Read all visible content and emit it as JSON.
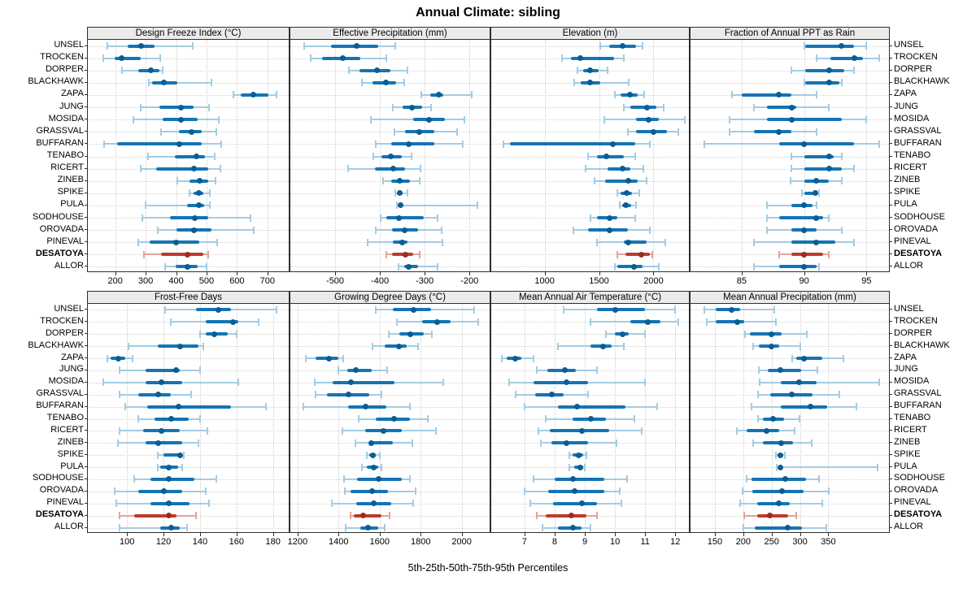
{
  "title": "Annual Climate: sibling",
  "caption": "5th-25th-50th-75th-95th Percentiles",
  "highlight_site": "DESATOYA",
  "colors": {
    "series_blue": "#1474b4",
    "series_blue_light": "#a5cbe2",
    "series_blue_dot": "#0b5d93",
    "highlight_red": "#bf3a2b",
    "highlight_red_light": "#e2a49c",
    "highlight_red_dot": "#9e2b1f",
    "grid": "#cfcfcf",
    "strip_bg": "#ebebeb",
    "border": "#2f2f2f"
  },
  "sites": [
    "UNSEL",
    "TROCKEN",
    "DORPER",
    "BLACKHAWK",
    "ZAPA",
    "JUNG",
    "MOSIDA",
    "GRASSVAL",
    "BUFFARAN",
    "TENABO",
    "RICERT",
    "ZINEB",
    "SPIKE",
    "PULA",
    "SODHOUSE",
    "OROVADA",
    "PINEVAL",
    "DESATOYA",
    "ALLOR"
  ],
  "percentile_levels": [
    5,
    25,
    50,
    75,
    95
  ],
  "chart_data": [
    {
      "type": "scatter",
      "style": "percentile-dot-whisker",
      "title": "Design Freeze Index (°C)",
      "xlim": [
        110,
        770
      ],
      "ticks": [
        200,
        300,
        400,
        500,
        600,
        700
      ],
      "values": [
        [
          175,
          240,
          285,
          330,
          455
        ],
        [
          160,
          198,
          222,
          285,
          348
        ],
        [
          222,
          276,
          318,
          345,
          355
        ],
        [
          310,
          320,
          360,
          405,
          515
        ],
        [
          588,
          612,
          655,
          703,
          730
        ],
        [
          285,
          345,
          415,
          458,
          508
        ],
        [
          260,
          355,
          415,
          470,
          540
        ],
        [
          350,
          410,
          450,
          485,
          532
        ],
        [
          163,
          207,
          410,
          485,
          548
        ],
        [
          308,
          395,
          467,
          496,
          528
        ],
        [
          284,
          335,
          460,
          505,
          545
        ],
        [
          405,
          445,
          478,
          506,
          530
        ],
        [
          445,
          458,
          474,
          489,
          510
        ],
        [
          300,
          435,
          475,
          491,
          510
        ],
        [
          288,
          379,
          461,
          505,
          645
        ],
        [
          340,
          400,
          460,
          516,
          655
        ],
        [
          276,
          314,
          399,
          476,
          535
        ],
        [
          295,
          350,
          438,
          490,
          505
        ],
        [
          364,
          399,
          438,
          470,
          499
        ]
      ]
    },
    {
      "type": "scatter",
      "style": "percentile-dot-whisker",
      "title": "Effective Precipitation (mm)",
      "xlim": [
        -600,
        -155
      ],
      "ticks": [
        -500,
        -400,
        -300,
        -200
      ],
      "values": [
        [
          -570,
          -509,
          -452,
          -404,
          -365
        ],
        [
          -555,
          -530,
          -482,
          -443,
          -385
        ],
        [
          -470,
          -445,
          -407,
          -377,
          -338
        ],
        [
          -440,
          -416,
          -387,
          -363,
          -345
        ],
        [
          -308,
          -287,
          -269,
          -259,
          -195
        ],
        [
          -372,
          -350,
          -329,
          -305,
          -285
        ],
        [
          -420,
          -325,
          -290,
          -254,
          -212
        ],
        [
          -367,
          -344,
          -313,
          -278,
          -227
        ],
        [
          -410,
          -375,
          -335,
          -279,
          -215
        ],
        [
          -415,
          -397,
          -375,
          -351,
          -329
        ],
        [
          -471,
          -411,
          -371,
          -344,
          -309
        ],
        [
          -393,
          -375,
          -355,
          -333,
          -311
        ],
        [
          -365,
          -362,
          -355,
          -350,
          -339
        ],
        [
          -362,
          -358,
          -354,
          -349,
          -182
        ],
        [
          -398,
          -385,
          -357,
          -302,
          -271
        ],
        [
          -409,
          -373,
          -345,
          -315,
          -263
        ],
        [
          -428,
          -372,
          -351,
          -338,
          -261
        ],
        [
          -385,
          -373,
          -343,
          -325,
          -311
        ],
        [
          -359,
          -345,
          -335,
          -315,
          -271
        ]
      ]
    },
    {
      "type": "scatter",
      "style": "percentile-dot-whisker",
      "title": "Elevation (m)",
      "xlim": [
        510,
        2325
      ],
      "ticks": [
        1000,
        1500,
        2000
      ],
      "values": [
        [
          1510,
          1595,
          1715,
          1840,
          1900
        ],
        [
          1160,
          1240,
          1330,
          1640,
          1730
        ],
        [
          1300,
          1355,
          1415,
          1495,
          1580
        ],
        [
          1270,
          1330,
          1415,
          1512,
          1772
        ],
        [
          1645,
          1700,
          1780,
          1855,
          1915
        ],
        [
          1730,
          1790,
          1940,
          2025,
          2095
        ],
        [
          1545,
          1840,
          1958,
          2050,
          2285
        ],
        [
          1767,
          1840,
          2000,
          2120,
          2230
        ],
        [
          625,
          680,
          1630,
          1835,
          1965
        ],
        [
          1400,
          1480,
          1567,
          1730,
          1830
        ],
        [
          1380,
          1580,
          1715,
          1785,
          1908
        ],
        [
          1455,
          1554,
          1772,
          1851,
          1933
        ],
        [
          1668,
          1698,
          1752,
          1802,
          1866
        ],
        [
          1693,
          1710,
          1743,
          1797,
          1842
        ],
        [
          1420,
          1480,
          1594,
          1668,
          1829
        ],
        [
          1265,
          1396,
          1599,
          1767,
          1970
        ],
        [
          1480,
          1730,
          1770,
          1940,
          2110
        ],
        [
          1670,
          1745,
          1890,
          1970,
          1990
        ],
        [
          1645,
          1670,
          1820,
          1900,
          2050
        ]
      ]
    },
    {
      "type": "scatter",
      "style": "percentile-dot-whisker",
      "title": "Fraction of Annual PPT as Rain",
      "xlim": [
        80.9,
        96.8
      ],
      "ticks": [
        85,
        90,
        95
      ],
      "values": [
        [
          90,
          90.1,
          93,
          94,
          95
        ],
        [
          91,
          92.1,
          94,
          94.7,
          96
        ],
        [
          89,
          90.1,
          92,
          93.2,
          94
        ],
        [
          90,
          90.1,
          92,
          92.8,
          93
        ],
        [
          84.2,
          85,
          88,
          89,
          91
        ],
        [
          86,
          87,
          89,
          89.4,
          92
        ],
        [
          84,
          87,
          89,
          93,
          95
        ],
        [
          84,
          86,
          88,
          89,
          91
        ],
        [
          82,
          88,
          90,
          94,
          96
        ],
        [
          89,
          90,
          92,
          92.4,
          93
        ],
        [
          89,
          90,
          92,
          93,
          94
        ],
        [
          88.9,
          90,
          91,
          92,
          93
        ],
        [
          89.8,
          90,
          90.9,
          91,
          91.2
        ],
        [
          87,
          89,
          90,
          90.7,
          91
        ],
        [
          87,
          88,
          91,
          91.5,
          92
        ],
        [
          87,
          89,
          90,
          91,
          93
        ],
        [
          86,
          89,
          91,
          92.5,
          94
        ],
        [
          88,
          89,
          90,
          91.5,
          92
        ],
        [
          86,
          88,
          90,
          91,
          91.2
        ]
      ]
    },
    {
      "type": "scatter",
      "style": "percentile-dot-whisker",
      "title": "Frost-Free Days",
      "xlim": [
        78.5,
        188.6
      ],
      "ticks": [
        100,
        120,
        140,
        160,
        180
      ],
      "values": [
        [
          121,
          138,
          150,
          157,
          182
        ],
        [
          124,
          143,
          158,
          161,
          172
        ],
        [
          140,
          143,
          148,
          155,
          160
        ],
        [
          101,
          117,
          129,
          139,
          142
        ],
        [
          89,
          91,
          95,
          99,
          103
        ],
        [
          96,
          110,
          127,
          129,
          140
        ],
        [
          87,
          110,
          119,
          130,
          161
        ],
        [
          96,
          106,
          117,
          124,
          135
        ],
        [
          99,
          111,
          128,
          157,
          176
        ],
        [
          106,
          115,
          124,
          134,
          140
        ],
        [
          96,
          109,
          119,
          129,
          144
        ],
        [
          95,
          110,
          117,
          130,
          139
        ],
        [
          117,
          120,
          129,
          130,
          131
        ],
        [
          117,
          118,
          123,
          128,
          130
        ],
        [
          104,
          113,
          123,
          137,
          149
        ],
        [
          93,
          106,
          120,
          130,
          143
        ],
        [
          94,
          113,
          123,
          134,
          145
        ],
        [
          96,
          104,
          123,
          127,
          138
        ],
        [
          96,
          118,
          124,
          129,
          133
        ]
      ]
    },
    {
      "type": "scatter",
      "style": "percentile-dot-whisker",
      "title": "Growing Degree Days (°C)",
      "xlim": [
        1165,
        2136
      ],
      "ticks": [
        1200,
        1400,
        1600,
        1800,
        2000
      ],
      "values": [
        [
          1580,
          1665,
          1765,
          1850,
          2060
        ],
        [
          1683,
          1806,
          1880,
          1945,
          2080
        ],
        [
          1643,
          1696,
          1751,
          1814,
          1853
        ],
        [
          1567,
          1626,
          1696,
          1731,
          1788
        ],
        [
          1240,
          1287,
          1353,
          1397,
          1424
        ],
        [
          1397,
          1441,
          1485,
          1561,
          1637
        ],
        [
          1283,
          1370,
          1462,
          1672,
          1912
        ],
        [
          1289,
          1342,
          1450,
          1548,
          1607
        ],
        [
          1229,
          1447,
          1530,
          1633,
          1748
        ],
        [
          1499,
          1583,
          1670,
          1748,
          1836
        ],
        [
          1420,
          1530,
          1620,
          1709,
          1875
        ],
        [
          1482,
          1548,
          1560,
          1665,
          1761
        ],
        [
          1538,
          1550,
          1567,
          1583,
          1602
        ],
        [
          1512,
          1538,
          1570,
          1593,
          1607
        ],
        [
          1426,
          1489,
          1596,
          1709,
          1748
        ],
        [
          1430,
          1460,
          1565,
          1639,
          1774
        ],
        [
          1368,
          1486,
          1570,
          1656,
          1764
        ],
        [
          1460,
          1473,
          1521,
          1607,
          1649
        ],
        [
          1433,
          1504,
          1544,
          1593,
          1626
        ]
      ]
    },
    {
      "type": "scatter",
      "style": "percentile-dot-whisker",
      "title": "Mean Annual Air Temperature (°C)",
      "xlim": [
        5.9,
        12.45
      ],
      "ticks": [
        7,
        8,
        9,
        10,
        11,
        12
      ],
      "values": [
        [
          8.3,
          9.4,
          10.0,
          11.0,
          12.0
        ],
        [
          9.2,
          10.5,
          11.1,
          11.5,
          12.1
        ],
        [
          9.7,
          10.0,
          10.25,
          10.45,
          11.0
        ],
        [
          8.1,
          9.2,
          9.6,
          9.9,
          10.3
        ],
        [
          6.25,
          6.4,
          6.7,
          6.9,
          7.3
        ],
        [
          7.4,
          7.75,
          8.35,
          8.7,
          9.4
        ],
        [
          6.5,
          7.3,
          8.4,
          9.1,
          11.0
        ],
        [
          6.7,
          7.35,
          7.9,
          8.3,
          9.1
        ],
        [
          7.0,
          8.1,
          8.75,
          10.35,
          11.4
        ],
        [
          7.7,
          8.6,
          9.2,
          9.7,
          10.65
        ],
        [
          7.45,
          7.85,
          8.9,
          9.8,
          10.9
        ],
        [
          7.55,
          7.9,
          8.4,
          9.1,
          10.05
        ],
        [
          8.5,
          8.6,
          8.8,
          8.95,
          9.05
        ],
        [
          8.5,
          8.65,
          8.85,
          8.95,
          9.0
        ],
        [
          7.3,
          8.0,
          8.6,
          9.65,
          10.4
        ],
        [
          7.0,
          7.8,
          8.65,
          9.65,
          10.15
        ],
        [
          7.2,
          7.95,
          8.9,
          9.4,
          10.2
        ],
        [
          7.4,
          7.7,
          8.55,
          9.05,
          9.4
        ],
        [
          7.6,
          8.1,
          8.6,
          8.9,
          9.2
        ]
      ]
    },
    {
      "type": "scatter",
      "style": "percentile-dot-whisker",
      "title": "Mean Annual Precipitation (mm)",
      "xlim": [
        107,
        457
      ],
      "ticks": [
        150,
        200,
        250,
        300,
        350
      ],
      "values": [
        [
          131,
          152,
          180,
          195,
          255
        ],
        [
          136,
          152,
          190,
          201,
          257
        ],
        [
          203,
          212,
          250,
          268,
          312
        ],
        [
          217,
          227,
          250,
          263,
          300
        ],
        [
          287,
          293,
          307,
          340,
          377
        ],
        [
          227,
          243,
          265,
          302,
          331
        ],
        [
          229,
          266,
          298,
          330,
          440
        ],
        [
          226,
          247,
          285,
          322,
          370
        ],
        [
          215,
          266,
          318,
          348,
          400
        ],
        [
          226,
          234,
          252,
          272,
          299
        ],
        [
          189,
          206,
          241,
          264,
          290
        ],
        [
          218,
          235,
          267,
          288,
          321
        ],
        [
          258,
          261,
          265,
          269,
          273
        ],
        [
          259,
          262,
          265,
          268,
          437
        ],
        [
          206,
          215,
          274,
          310,
          334
        ],
        [
          199,
          216,
          268,
          306,
          351
        ],
        [
          195,
          225,
          262,
          282,
          339
        ],
        [
          201,
          224,
          247,
          279,
          294
        ],
        [
          200,
          221,
          278,
          303,
          346
        ]
      ]
    }
  ]
}
